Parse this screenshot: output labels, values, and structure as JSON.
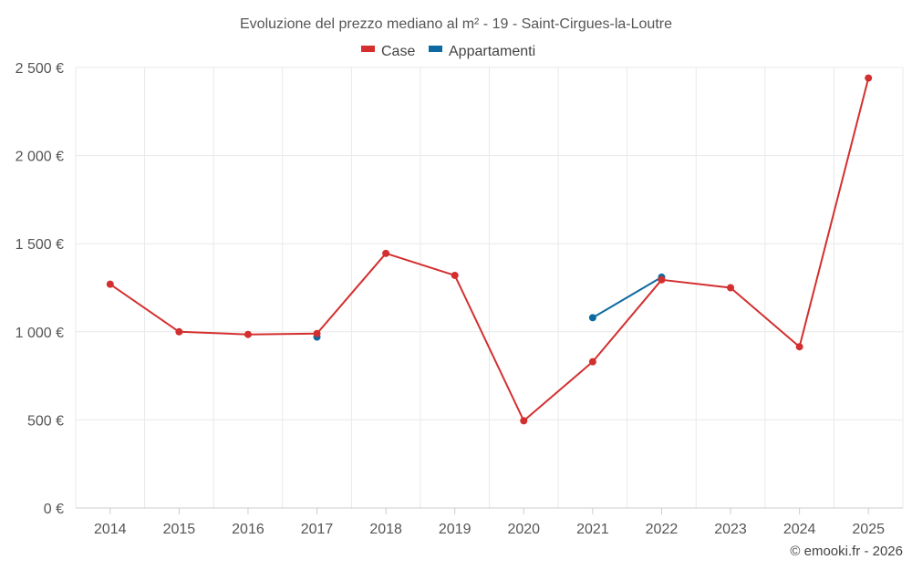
{
  "chart_data": {
    "type": "line",
    "title": "Evoluzione del prezzo mediano al m² - 19 - Saint-Cirgues-la-Loutre",
    "categories": [
      "2014",
      "2015",
      "2016",
      "2017",
      "2018",
      "2019",
      "2020",
      "2021",
      "2022",
      "2023",
      "2024",
      "2025"
    ],
    "ylim": [
      0,
      2500
    ],
    "yticks": [
      0,
      500,
      1000,
      1500,
      2000,
      2500
    ],
    "ytick_labels": [
      "0 €",
      "500 €",
      "1 000 €",
      "1 500 €",
      "2 000 €",
      "2 500 €"
    ],
    "grid": true,
    "legend_position": "top-center",
    "series": [
      {
        "name": "Case",
        "color": "#d32f2f",
        "values": [
          1270,
          1000,
          985,
          990,
          1445,
          1320,
          495,
          830,
          1295,
          1250,
          915,
          2440
        ]
      },
      {
        "name": "Appartamenti",
        "color": "#0d6aa0",
        "values": [
          null,
          null,
          null,
          970,
          null,
          null,
          null,
          1080,
          1310,
          null,
          null,
          null
        ]
      }
    ]
  },
  "credit": "© emooki.fr - 2026"
}
